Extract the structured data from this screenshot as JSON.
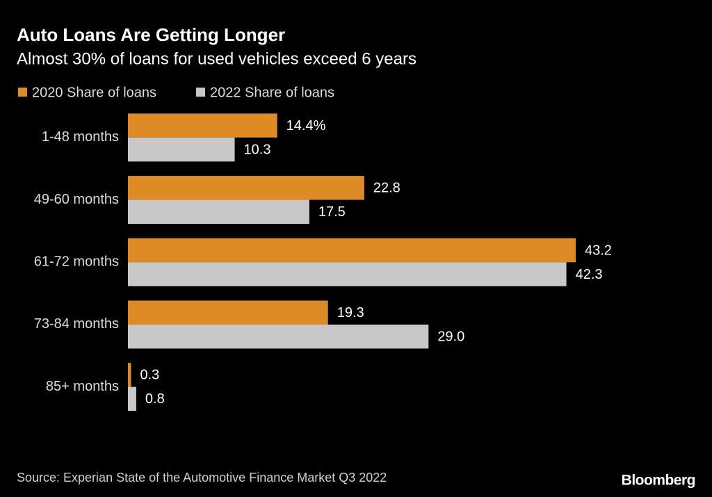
{
  "chart_data": {
    "type": "hbar",
    "title": "Auto Loans Are Getting Longer",
    "subtitle": "Almost 30% of loans for used vehicles exceed 6 years",
    "categories": [
      "1-48 months",
      "49-60 months",
      "61-72 months",
      "73-84 months",
      "85+ months"
    ],
    "series": [
      {
        "name": "2020 Share of loans",
        "color": "#de8b26",
        "values": [
          14.4,
          22.8,
          43.2,
          19.3,
          0.3
        ],
        "value_labels": [
          "14.4%",
          "22.8",
          "43.2",
          "19.3",
          "0.3"
        ]
      },
      {
        "name": "2022 Share of loans",
        "color": "#c8c8c8",
        "values": [
          10.3,
          17.5,
          42.3,
          29.0,
          0.8
        ],
        "value_labels": [
          "10.3",
          "17.5",
          "42.3",
          "29.0",
          "0.8"
        ]
      }
    ],
    "legend": "top-left",
    "source": "Source: Experian State of the Automotive Finance Market Q3 2022",
    "brand": "Bloomberg"
  }
}
